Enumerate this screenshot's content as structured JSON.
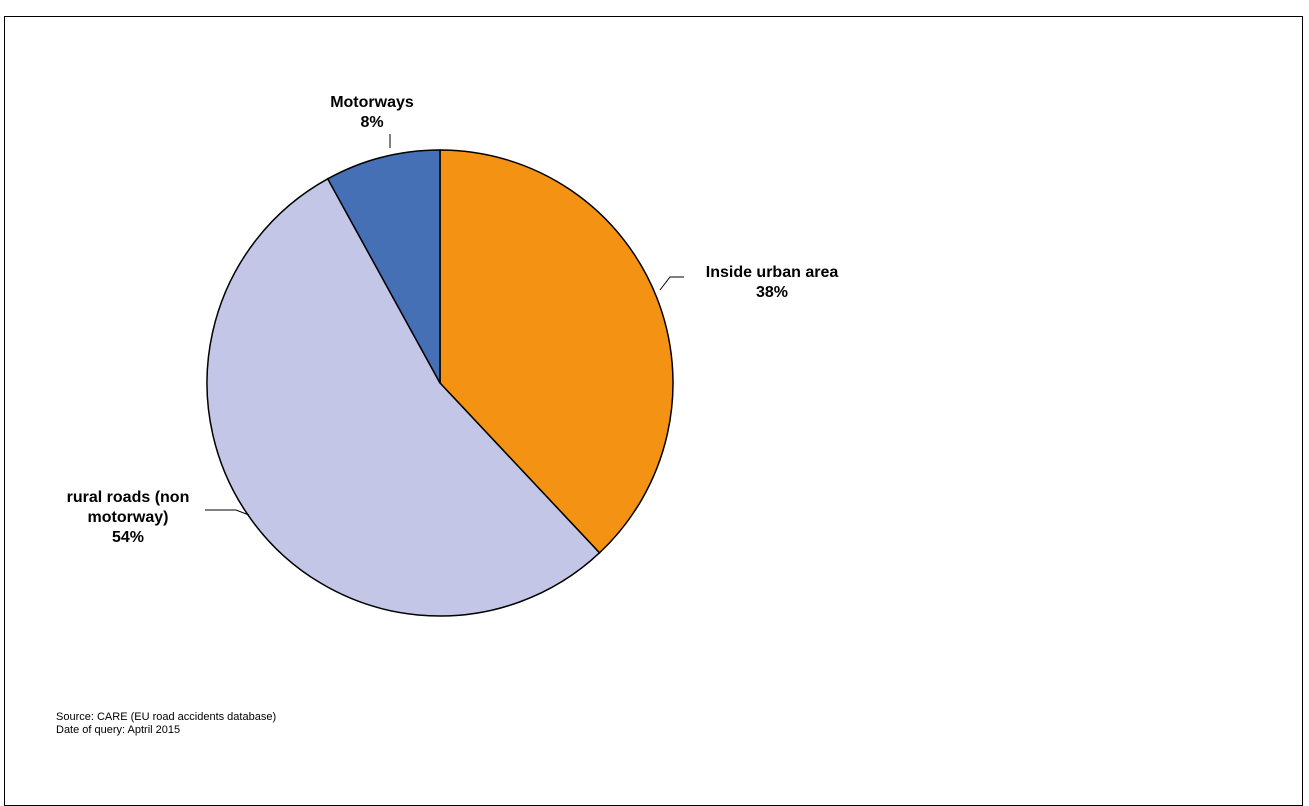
{
  "chart_data": {
    "type": "pie",
    "slices": [
      {
        "label": "Inside urban area",
        "value": 38,
        "value_label": "38%",
        "color": "#f39213"
      },
      {
        "label": "rural roads (non motorway)",
        "label_lines": [
          "rural roads (non",
          "motorway)"
        ],
        "value": 54,
        "value_label": "54%",
        "color": "#c4c6e8"
      },
      {
        "label": "Motorways",
        "value": 8,
        "value_label": "8%",
        "color": "#4670b5"
      }
    ],
    "start_angle_deg": 0,
    "direction": "clockwise",
    "outline_color": "#000000"
  },
  "footer": {
    "source": "Source: CARE (EU road  accidents database)",
    "date": "Date of query: Aptril 2015"
  }
}
